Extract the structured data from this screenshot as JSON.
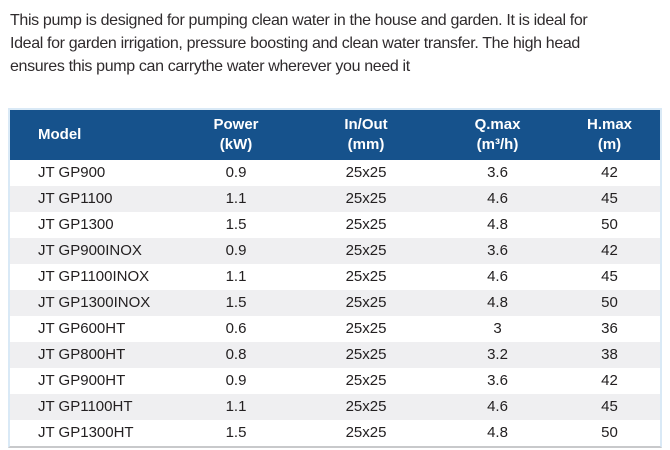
{
  "intro": {
    "lines": [
      "This pump is designed for pumping clean water in the house and garden. It is ideal for",
      "Ideal for garden irrigation, pressure boosting and clean water transfer. The high head",
      "ensures this pump can carrythe water wherever you need it"
    ]
  },
  "table": {
    "columns": [
      {
        "label": "Model",
        "sub": ""
      },
      {
        "label": "Power",
        "sub": "(kW)"
      },
      {
        "label": "In/Out",
        "sub": "(mm)"
      },
      {
        "label": "Q.max",
        "sub": "(m³/h)"
      },
      {
        "label": "H.max",
        "sub": "(m)"
      }
    ],
    "rows": [
      {
        "model": "JT GP900",
        "power": "0.9",
        "inout": "25x25",
        "qmax": "3.6",
        "hmax": "42"
      },
      {
        "model": "JT GP1100",
        "power": "1.1",
        "inout": "25x25",
        "qmax": "4.6",
        "hmax": "45"
      },
      {
        "model": "JT GP1300",
        "power": "1.5",
        "inout": "25x25",
        "qmax": "4.8",
        "hmax": "50"
      },
      {
        "model": "JT GP900INOX",
        "power": "0.9",
        "inout": "25x25",
        "qmax": "3.6",
        "hmax": "42"
      },
      {
        "model": "JT GP1100INOX",
        "power": "1.1",
        "inout": "25x25",
        "qmax": "4.6",
        "hmax": "45"
      },
      {
        "model": "JT GP1300INOX",
        "power": "1.5",
        "inout": "25x25",
        "qmax": "4.8",
        "hmax": "50"
      },
      {
        "model": "JT GP600HT",
        "power": "0.6",
        "inout": "25x25",
        "qmax": "3",
        "hmax": "36"
      },
      {
        "model": "JT GP800HT",
        "power": "0.8",
        "inout": "25x25",
        "qmax": "3.2",
        "hmax": "38"
      },
      {
        "model": "JT GP900HT",
        "power": "0.9",
        "inout": "25x25",
        "qmax": "3.6",
        "hmax": "42"
      },
      {
        "model": "JT GP1100HT",
        "power": "1.1",
        "inout": "25x25",
        "qmax": "4.6",
        "hmax": "45"
      },
      {
        "model": "JT GP1300HT",
        "power": "1.5",
        "inout": "25x25",
        "qmax": "4.8",
        "hmax": "50"
      }
    ]
  },
  "colors": {
    "header_bg": "#16528c",
    "header_text": "#ffffff",
    "row_alt_bg": "#efeff1",
    "body_text": "#232021",
    "intro_text": "#2f2b2d",
    "table_outline": "#d9e9f6",
    "table_bottom": "#c8c9cb"
  }
}
